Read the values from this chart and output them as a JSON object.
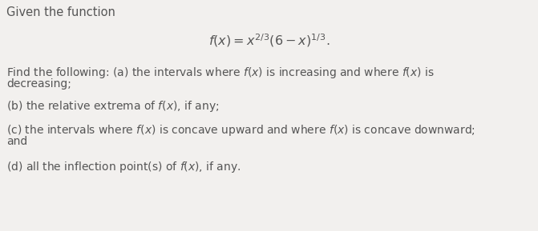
{
  "background_color": "#f2f0ee",
  "title_text": "Given the function",
  "formula": "$f(x) = x^{2/3}(6-x)^{1/3}.$",
  "line_a1": "Find the following: (a) the intervals where $f(x)$ is increasing and where $f(x)$ is",
  "line_a2": "decreasing;",
  "line_b": "(b) the relative extrema of $f(x)$, if any;",
  "line_c1": "(c) the intervals where $f(x)$ is concave upward and where $f(x)$ is concave downward;",
  "line_c2": "and",
  "line_d": "(d) all the inflection point(s) of $f(x)$, if any.",
  "font_size_title": 10.5,
  "font_size_formula": 11.5,
  "font_size_body": 10.0,
  "text_color": "#555555"
}
